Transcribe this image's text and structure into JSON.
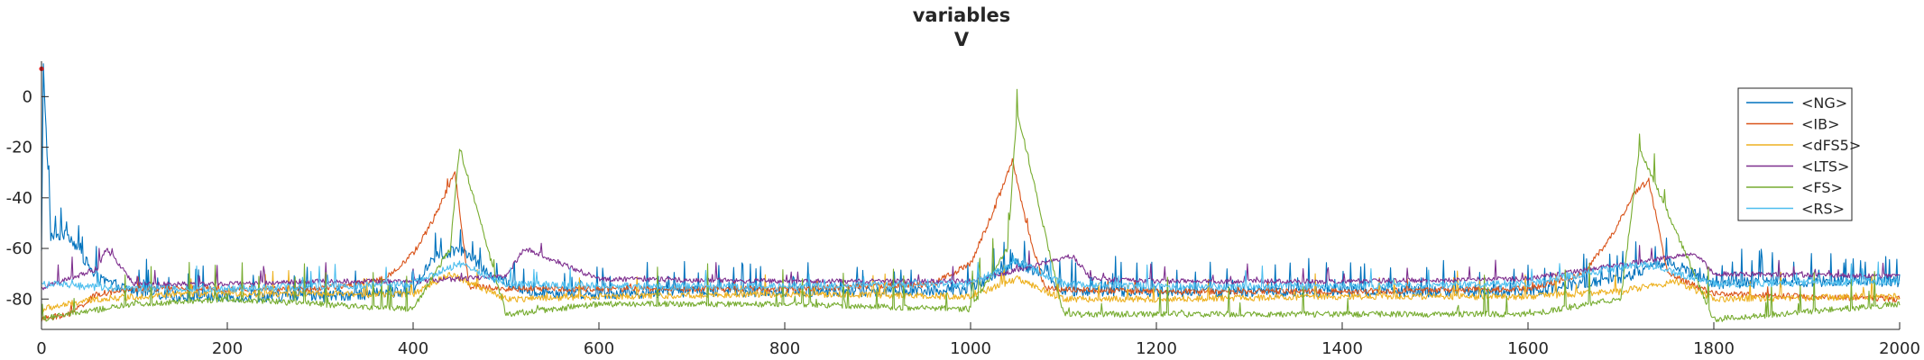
{
  "chart_data": {
    "type": "line",
    "title": "variables",
    "subtitle": "V",
    "xlabel": "",
    "ylabel": "",
    "xlim": [
      0,
      2000
    ],
    "ylim": [
      -92,
      14
    ],
    "xticks": [
      0,
      200,
      400,
      600,
      800,
      1000,
      1200,
      1400,
      1600,
      1800,
      2000
    ],
    "yticks": [
      0,
      -20,
      -40,
      -60,
      -80
    ],
    "grid": false,
    "legend_position": "top-right",
    "marker": {
      "x": 0,
      "y": 11,
      "color": "#e41a1c"
    },
    "series": [
      {
        "name": "<NG>",
        "color": "#0072bd",
        "base": -79,
        "noise": 2.2,
        "spike_rate": 0.12,
        "spike_amp": 12,
        "x": [
          0,
          2,
          10,
          30,
          60,
          100,
          150,
          200,
          300,
          400,
          420,
          450,
          480,
          520,
          600,
          700,
          800,
          900,
          1000,
          1050,
          1080,
          1100,
          1200,
          1300,
          1400,
          1500,
          1600,
          1700,
          1750,
          1800,
          1900,
          2000
        ],
        "y": [
          -62,
          12,
          -55,
          -55,
          -72,
          -77,
          -79,
          -79,
          -79,
          -77,
          -64,
          -60,
          -70,
          -77,
          -78,
          -77,
          -77,
          -77,
          -76,
          -66,
          -70,
          -77,
          -77,
          -77,
          -77,
          -77,
          -77,
          -72,
          -65,
          -74,
          -73,
          -73
        ]
      },
      {
        "name": "<IB>",
        "color": "#d95319",
        "base": -76,
        "noise": 1.2,
        "spike_rate": 0.02,
        "spike_amp": 4,
        "x": [
          0,
          30,
          60,
          100,
          200,
          300,
          370,
          400,
          420,
          435,
          445,
          460,
          500,
          600,
          800,
          960,
          1000,
          1025,
          1045,
          1060,
          1080,
          1200,
          1400,
          1600,
          1660,
          1690,
          1715,
          1730,
          1750,
          1800,
          2000
        ],
        "y": [
          -88,
          -86,
          -78,
          -76,
          -76,
          -76,
          -72,
          -62,
          -50,
          -38,
          -30,
          -75,
          -76,
          -76,
          -76,
          -74,
          -66,
          -45,
          -25,
          -50,
          -76,
          -77,
          -77,
          -76,
          -70,
          -55,
          -38,
          -33,
          -70,
          -78,
          -80
        ]
      },
      {
        "name": "<dFS5>",
        "color": "#edb120",
        "base": -79,
        "noise": 1.3,
        "spike_rate": 0.03,
        "spike_amp": 10,
        "x": [
          0,
          60,
          150,
          300,
          400,
          440,
          500,
          600,
          800,
          1000,
          1050,
          1100,
          1200,
          1400,
          1600,
          1700,
          1760,
          1800,
          2000
        ],
        "y": [
          -84,
          -80,
          -78,
          -78,
          -78,
          -70,
          -80,
          -79,
          -78,
          -79,
          -72,
          -80,
          -80,
          -79,
          -79,
          -77,
          -73,
          -80,
          -79
        ]
      },
      {
        "name": "<LTS>",
        "color": "#7e2f8e",
        "base": -74,
        "noise": 1.0,
        "spike_rate": 0.03,
        "spike_amp": 8,
        "x": [
          0,
          60,
          70,
          100,
          200,
          300,
          400,
          500,
          520,
          600,
          800,
          1000,
          1110,
          1130,
          1200,
          1400,
          1600,
          1780,
          1800,
          2000
        ],
        "y": [
          -76,
          -68,
          -60,
          -74,
          -74,
          -73,
          -73,
          -71,
          -60,
          -72,
          -73,
          -73,
          -63,
          -72,
          -73,
          -73,
          -72,
          -62,
          -70,
          -71
        ]
      },
      {
        "name": "<FS>",
        "color": "#77ac30",
        "base": -87,
        "noise": 1.2,
        "spike_rate": 0.04,
        "spike_amp": 16,
        "x": [
          0,
          30,
          100,
          200,
          300,
          400,
          440,
          450,
          500,
          600,
          800,
          1000,
          1040,
          1050,
          1100,
          1200,
          1400,
          1600,
          1700,
          1720,
          1800,
          2000
        ],
        "y": [
          -88,
          -86,
          -82,
          -80,
          -82,
          -84,
          -60,
          -20,
          -86,
          -82,
          -82,
          -84,
          -60,
          -5,
          -86,
          -86,
          -86,
          -86,
          -80,
          -20,
          -88,
          -82
        ]
      },
      {
        "name": "<RS>",
        "color": "#4dbeee",
        "base": -75,
        "noise": 1.5,
        "spike_rate": 0.03,
        "spike_amp": 8,
        "x": [
          0,
          100,
          200,
          300,
          400,
          450,
          500,
          600,
          800,
          1000,
          1050,
          1100,
          1200,
          1400,
          1600,
          1720,
          1800,
          2000
        ],
        "y": [
          -74,
          -76,
          -76,
          -75,
          -74,
          -66,
          -74,
          -75,
          -75,
          -74,
          -65,
          -74,
          -75,
          -75,
          -74,
          -66,
          -74,
          -73
        ]
      }
    ]
  }
}
